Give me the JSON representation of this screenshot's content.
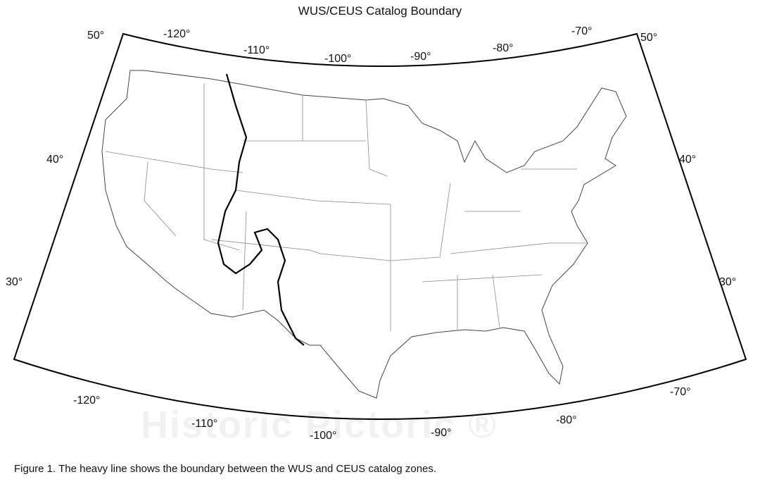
{
  "title": "WUS/CEUS Catalog Boundary",
  "caption": "Figure 1. The heavy line shows the boundary between the WUS and CEUS catalog zones.",
  "watermark": "Historic Pictoric ®",
  "graticule_labels": {
    "top": [
      "-120°",
      "-110°",
      "-100°",
      "-90°",
      "-80°",
      "-70°"
    ],
    "bottom": [
      "-120°",
      "-110°",
      "-100°",
      "-90°",
      "-80°",
      "-70°"
    ],
    "left": [
      "50°",
      "40°",
      "30°"
    ],
    "right": [
      "50°",
      "40°",
      "30°"
    ]
  },
  "map": {
    "projection": "conic",
    "region": "Conterminous United States with state boundaries",
    "boundary_line": "WUS/CEUS catalog boundary (heavy line)"
  }
}
